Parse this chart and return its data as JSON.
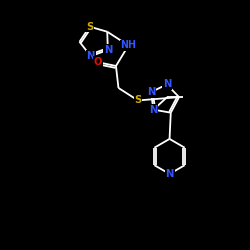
{
  "bg_color": "#000000",
  "bond_color": "#ffffff",
  "N_color": "#3355ff",
  "S_color": "#ccaa00",
  "O_color": "#dd1100",
  "font_size": 7.2,
  "figsize": [
    2.5,
    2.5
  ],
  "dpi": 100,
  "xlim": [
    0,
    10
  ],
  "ylim": [
    0,
    10
  ]
}
